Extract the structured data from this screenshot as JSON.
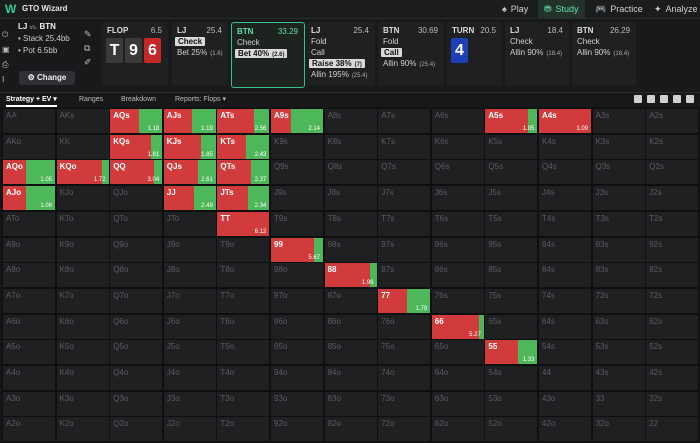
{
  "app": {
    "brand": "GTO Wizard",
    "nav": [
      {
        "label": "Play",
        "icon": "♠",
        "active": false
      },
      {
        "label": "Study",
        "icon": "⛃",
        "active": true
      },
      {
        "label": "Practice",
        "icon": "🎮",
        "active": false
      },
      {
        "label": "Analyze",
        "icon": "✦",
        "active": false
      }
    ]
  },
  "situation": {
    "title": "LJ",
    "vs": "vs.",
    "opp": "BTN",
    "stack": "• Stack 25.4bb",
    "pot": "• Pot 6.5bb",
    "change_label": "Change"
  },
  "streets": [
    {
      "pos": "FLOP",
      "stack": "6.5",
      "cards": [
        {
          "rank": "T",
          "color": "#3a3a3a"
        },
        {
          "rank": "9",
          "color": "#3a3a3a"
        },
        {
          "rank": "6",
          "color": "#c62828"
        }
      ]
    },
    {
      "pos": "LJ",
      "stack": "25.4",
      "actions": [
        {
          "label": "Check",
          "freq": "",
          "sel": true
        },
        {
          "label": "Bet 25%",
          "freq": "(1.6)",
          "sel": false
        }
      ]
    },
    {
      "pos": "BTN",
      "stack": "33.29",
      "hl": true,
      "actions": [
        {
          "label": "Check",
          "freq": "",
          "sel": false
        },
        {
          "label": "Bet 40%",
          "freq": "(2.6)",
          "sel": true
        }
      ]
    },
    {
      "pos": "LJ",
      "stack": "25.4",
      "actions": [
        {
          "label": "Fold",
          "freq": "",
          "sel": false
        },
        {
          "label": "Call",
          "freq": "",
          "sel": false
        },
        {
          "label": "Raise 38%",
          "freq": "(7)",
          "sel": true
        },
        {
          "label": "Allin 195%",
          "freq": "(25.4)",
          "sel": false
        }
      ]
    },
    {
      "pos": "BTN",
      "stack": "30.69",
      "actions": [
        {
          "label": "Fold",
          "freq": "",
          "sel": false
        },
        {
          "label": "Call",
          "freq": "",
          "sel": true
        },
        {
          "label": "Allin 90%",
          "freq": "(25.4)",
          "sel": false
        }
      ]
    },
    {
      "pos": "TURN",
      "stack": "20.5",
      "cards": [
        {
          "rank": "4",
          "color": "#1e3fb5"
        }
      ]
    },
    {
      "pos": "LJ",
      "stack": "18.4",
      "actions": [
        {
          "label": "Check",
          "freq": "",
          "sel": false
        },
        {
          "label": "Allin 90%",
          "freq": "(18.4)",
          "sel": false
        }
      ]
    },
    {
      "pos": "BTN",
      "stack": "26.29",
      "actions": [
        {
          "label": "Check",
          "freq": "",
          "sel": false
        },
        {
          "label": "Allin 90%",
          "freq": "(18.4)",
          "sel": false
        }
      ]
    }
  ],
  "tabs": [
    "Strategy + EV",
    "Ranges",
    "Breakdown",
    "Reports: Flops"
  ],
  "ranks": [
    "A",
    "K",
    "Q",
    "J",
    "T",
    "9",
    "8",
    "7",
    "6",
    "5",
    "4",
    "3",
    "2"
  ],
  "colors": {
    "raise": "#d23b3b",
    "call": "#4cb85a",
    "empty": "#1f2022"
  },
  "cells": {
    "AQs": {
      "red": 0.55,
      "ev": "1.18"
    },
    "AJs": {
      "red": 0.55,
      "ev": "1.19"
    },
    "ATs": {
      "red": 0.7,
      "ev": "2.56"
    },
    "A9s": {
      "red": 0.38,
      "ev": "2.14"
    },
    "A5s": {
      "red": 0.82,
      "ev": "1.05"
    },
    "A4s": {
      "red": 1.0,
      "ev": "1.09"
    },
    "KQs": {
      "red": 0.78,
      "ev": "1.81"
    },
    "KJs": {
      "red": 0.72,
      "ev": "1.85"
    },
    "KTs": {
      "red": 0.55,
      "ev": "2.43"
    },
    "AQo": {
      "red": 0.45,
      "ev": "1.05"
    },
    "KQo": {
      "red": 0.88,
      "ev": "1.72"
    },
    "QQ": {
      "red": 0.85,
      "ev": "3.04"
    },
    "QJs": {
      "red": 0.65,
      "ev": "2.61"
    },
    "QTs": {
      "red": 0.65,
      "ev": "2.37"
    },
    "AJo": {
      "red": 0.45,
      "ev": "1.08"
    },
    "JJ": {
      "red": 0.58,
      "ev": "2.49"
    },
    "JTs": {
      "red": 0.58,
      "ev": "2.34"
    },
    "TT": {
      "red": 1.0,
      "ev": "6.12"
    },
    "99": {
      "red": 0.82,
      "ev": "5.67"
    },
    "88": {
      "red": 0.88,
      "ev": "1.96"
    },
    "77": {
      "red": 0.55,
      "ev": "1.79"
    },
    "66": {
      "red": 0.9,
      "ev": "5.27"
    },
    "55": {
      "red": 0.62,
      "ev": "1.33"
    }
  }
}
